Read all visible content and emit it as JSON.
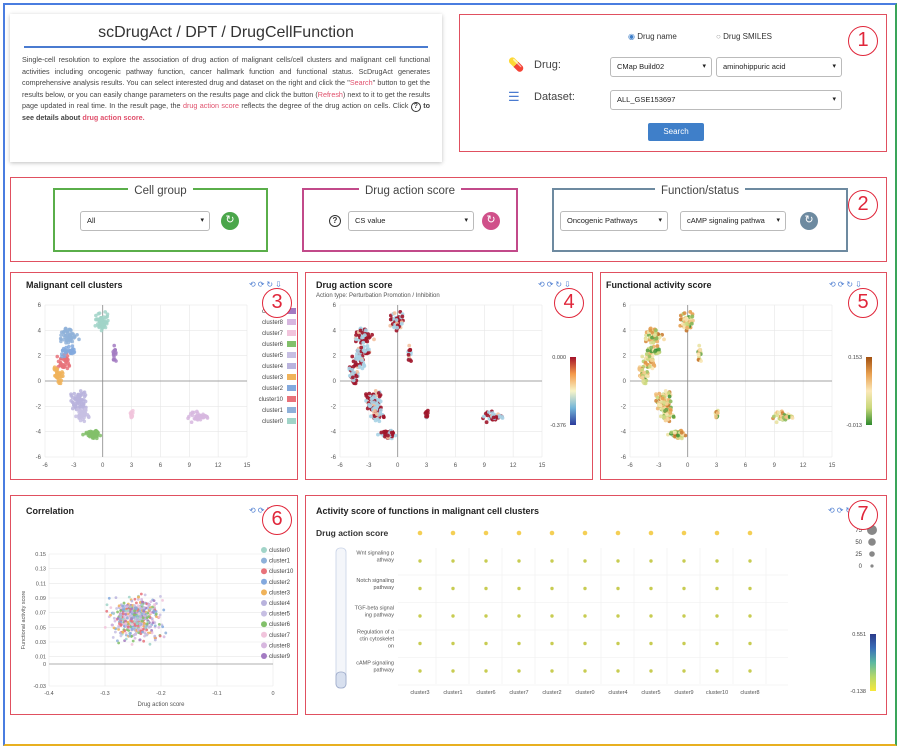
{
  "intro": {
    "title": "scDrugAct / DPT / DrugCellFunction",
    "p1": "Single-cell resolution to explore the association of drug action of malignant cells/cell clusters and malignant cell functional activities including oncogenic pathway function, cancer hallmark function and functional status. ScDrugAct generates comprehensive analysis results. You can select interested drug and dataset on the right and click the \"",
    "search_word": "Search",
    "p2": "\" button to get the results below, or you can easily change parameters on the results page and click the button (",
    "refresh_word": "Refresh",
    "p3": ") next to it to get the results page updated in real time. In the result page, the ",
    "das_word": "drug action score",
    "p4": " reflects the degree of the drug action on cells. Click ",
    "q": "?",
    "p5": " to see details about ",
    "das_word2": "drug action score."
  },
  "query": {
    "radio_drug_name": "Drug name",
    "radio_drug_smiles": "Drug SMILES",
    "drug_label": "Drug:",
    "drug_source": "CMap Build02",
    "drug_value": "aminohippuric acid",
    "dataset_label": "Dataset:",
    "dataset_value": "ALL_GSE153697",
    "search_label": "Search"
  },
  "filters": {
    "cell_group_title": "Cell group",
    "cell_group_value": "All",
    "das_title": "Drug action score",
    "das_help": "?",
    "das_value": "CS value",
    "function_title": "Function/status",
    "function_category": "Oncogenic Pathways",
    "function_value": "cAMP signaling pathwa"
  },
  "markers": [
    "1",
    "2",
    "3",
    "4",
    "5",
    "6",
    "7"
  ],
  "panels": {
    "clusters_title": "Malignant cell clusters",
    "das_title": "Drug action score",
    "das_subtitle": "Action type: Perturbation Promotion / Inhibition",
    "fas_title": "Functional activity score",
    "corr_title": "Correlation",
    "activity_title": "Activity score of functions in malignant cell clusters"
  },
  "colors": {
    "cluster_palette": [
      "#a1d4c8",
      "#8fb1d9",
      "#e8727a",
      "#83a9de",
      "#f0b35a",
      "#b9b3dd",
      "#c7bfe3",
      "#82c06a",
      "#f1c4dc",
      "#d7b7df",
      "#a37bc2"
    ]
  },
  "chart_data": [
    {
      "type": "scatter",
      "title": "Malignant cell clusters",
      "x_ticks": [
        "-6",
        "-3",
        "0",
        "3",
        "6",
        "9",
        "12",
        "15"
      ],
      "y_ticks": [
        "6",
        "4",
        "2",
        "0",
        "-2",
        "-4",
        "-6"
      ],
      "xlim": [
        -6,
        15
      ],
      "ylim": [
        -6,
        6
      ],
      "legend": [
        "cluster9",
        "cluster8",
        "cluster7",
        "cluster6",
        "cluster5",
        "cluster4",
        "cluster3",
        "cluster2",
        "cluster10",
        "cluster1",
        "cluster0"
      ],
      "legend_position": "right"
    },
    {
      "type": "scatter",
      "title": "Drug action score",
      "x_ticks": [
        "-6",
        "-3",
        "0",
        "3",
        "6",
        "9",
        "12",
        "15"
      ],
      "y_ticks": [
        "6",
        "4",
        "2",
        "0",
        "-2",
        "-4",
        "-6"
      ],
      "xlim": [
        -6,
        15
      ],
      "ylim": [
        -6,
        6
      ],
      "colorbar": {
        "max": "0.000",
        "min": "-0.376"
      }
    },
    {
      "type": "scatter",
      "title": "Functional activity score",
      "x_ticks": [
        "-6",
        "-3",
        "0",
        "3",
        "6",
        "9",
        "12",
        "15"
      ],
      "y_ticks": [
        "6",
        "4",
        "2",
        "0",
        "-2",
        "-4",
        "-6"
      ],
      "xlim": [
        -6,
        15
      ],
      "ylim": [
        -6,
        6
      ],
      "colorbar": {
        "max": "0.153",
        "min": "-0.013"
      }
    },
    {
      "type": "scatter",
      "title": "Correlation",
      "xlabel": "Drug action score",
      "ylabel": "Functional activity score",
      "x_ticks": [
        "-0.4",
        "-0.3",
        "-0.2",
        "-0.1",
        "0"
      ],
      "y_ticks": [
        "0.15",
        "0.13",
        "0.11",
        "0.09",
        "0.07",
        "0.05",
        "0.03",
        "0.01",
        "0",
        "-0.03"
      ],
      "legend": [
        "cluster0",
        "cluster1",
        "cluster10",
        "cluster2",
        "cluster3",
        "cluster4",
        "cluster5",
        "cluster6",
        "cluster7",
        "cluster8",
        "cluster9"
      ],
      "legend_position": "right"
    },
    {
      "type": "heatmap",
      "title": "Activity score of functions in malignant cell clusters",
      "top_row_label": "Drug action score",
      "rows": [
        "Wnt signaling p\nathway",
        "Notch signaling\npathway",
        "TGF-beta signal\ning pathway",
        "Regulation of a\nctin cytoskelet\non",
        "cAMP signaling\npathway"
      ],
      "columns": [
        "cluster3",
        "cluster1",
        "cluster6",
        "cluster7",
        "cluster2",
        "cluster0",
        "cluster4",
        "cluster5",
        "cluster9",
        "cluster10",
        "cluster8"
      ],
      "size_legend": [
        "75",
        "50",
        "25",
        "0"
      ],
      "colorbar": {
        "max": "0.551",
        "min": "-0.138"
      }
    }
  ]
}
